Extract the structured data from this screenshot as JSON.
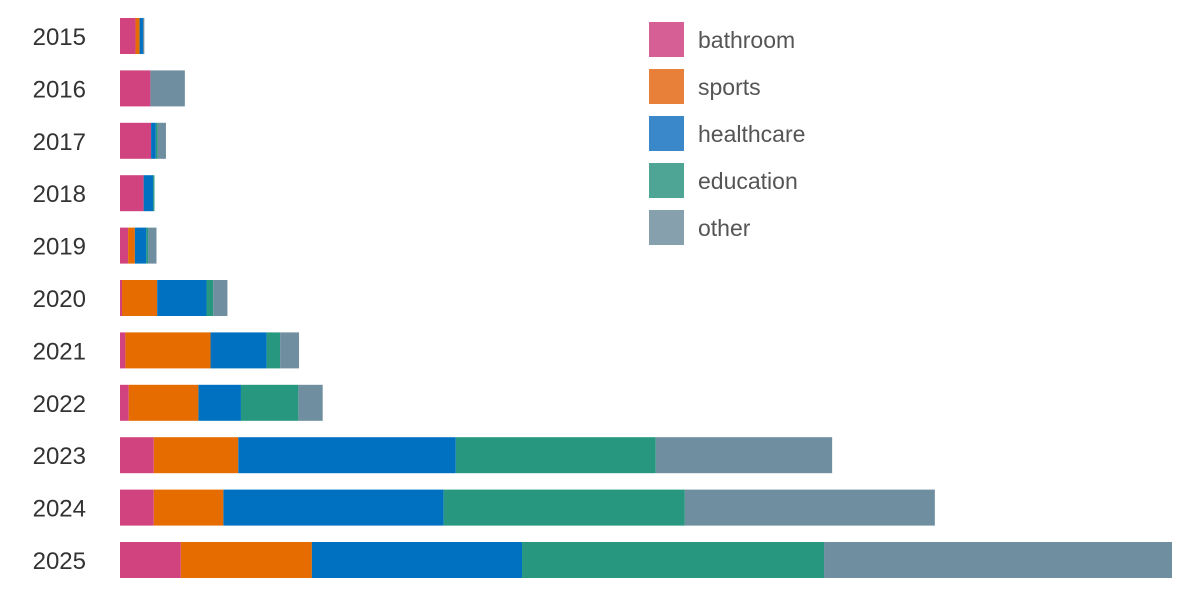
{
  "chart_data": {
    "type": "bar",
    "orientation": "horizontal",
    "stacked": true,
    "title": "",
    "xlabel": "",
    "ylabel": "",
    "categories": [
      "2015",
      "2016",
      "2017",
      "2018",
      "2019",
      "2020",
      "2021",
      "2022",
      "2023",
      "2024",
      "2025"
    ],
    "series": [
      {
        "name": "bathroom",
        "color": "#d1437f",
        "values": [
          2.3,
          4.5,
          4.6,
          3.5,
          1.2,
          0.3,
          0.8,
          1.3,
          5.0,
          5.0,
          9.0
        ]
      },
      {
        "name": "sports",
        "color": "#e66c00",
        "values": [
          0.6,
          0,
          0,
          0,
          1.0,
          5.2,
          12.6,
          10.3,
          12.5,
          10.3,
          19.4
        ]
      },
      {
        "name": "healthcare",
        "color": "#0071c1",
        "values": [
          0.5,
          0,
          0.7,
          1.4,
          1.7,
          7.3,
          8.3,
          6.3,
          32.2,
          32.6,
          31.1
        ]
      },
      {
        "name": "education",
        "color": "#27977f",
        "values": [
          0,
          0,
          0.3,
          0.2,
          0.3,
          1.0,
          2.0,
          8.5,
          29.6,
          35.7,
          44.7
        ]
      },
      {
        "name": "other",
        "color": "#6f8e9f",
        "values": [
          0.2,
          5.1,
          1.2,
          0,
          1.2,
          2.1,
          2.8,
          3.6,
          26.1,
          37.0,
          51.5
        ]
      }
    ],
    "legend_position": "top-right",
    "grid": false,
    "x_axis_visible": false
  }
}
